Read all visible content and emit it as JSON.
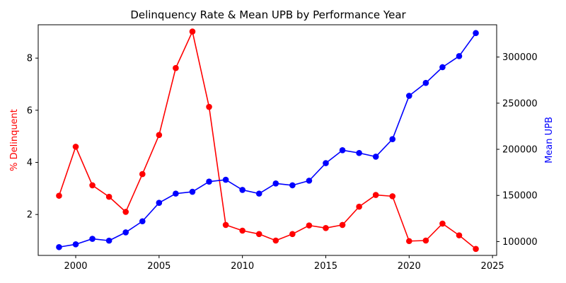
{
  "chart_data": {
    "type": "line",
    "title": "Delinquency Rate & Mean UPB by Performance Year",
    "xlabel": "",
    "ylabel": "% Delinquent",
    "y2label": "Mean UPB",
    "x": [
      1999,
      2000,
      2001,
      2002,
      2003,
      2004,
      2005,
      2006,
      2007,
      2008,
      2009,
      2010,
      2011,
      2012,
      2013,
      2014,
      2015,
      2016,
      2017,
      2018,
      2019,
      2020,
      2021,
      2022,
      2023,
      2024
    ],
    "xlim": [
      1997.75,
      2025.25
    ],
    "ylim": [
      0.43,
      9.28
    ],
    "y2lim": [
      85000,
      335000
    ],
    "xticks": [
      2000,
      2005,
      2010,
      2015,
      2020,
      2025
    ],
    "yticks": [
      2,
      4,
      6,
      8
    ],
    "y2ticks": [
      100000,
      150000,
      200000,
      250000,
      300000
    ],
    "grid": false,
    "series": [
      {
        "axis": "left",
        "color": "#ff0000",
        "values": [
          2.72,
          4.6,
          3.12,
          2.68,
          2.1,
          3.55,
          5.05,
          7.62,
          9.02,
          6.13,
          1.6,
          1.38,
          1.25,
          1.0,
          1.25,
          1.58,
          1.48,
          1.6,
          2.3,
          2.75,
          2.7,
          0.98,
          1.0,
          1.65,
          1.2,
          0.68
        ]
      },
      {
        "axis": "right",
        "color": "#0000ff",
        "values": [
          94000,
          97000,
          103000,
          101000,
          110000,
          122000,
          142000,
          152000,
          154000,
          165000,
          167000,
          156000,
          152000,
          163000,
          161000,
          166000,
          185000,
          199000,
          196000,
          192000,
          211000,
          258000,
          272000,
          289000,
          301000,
          326000
        ]
      }
    ]
  }
}
